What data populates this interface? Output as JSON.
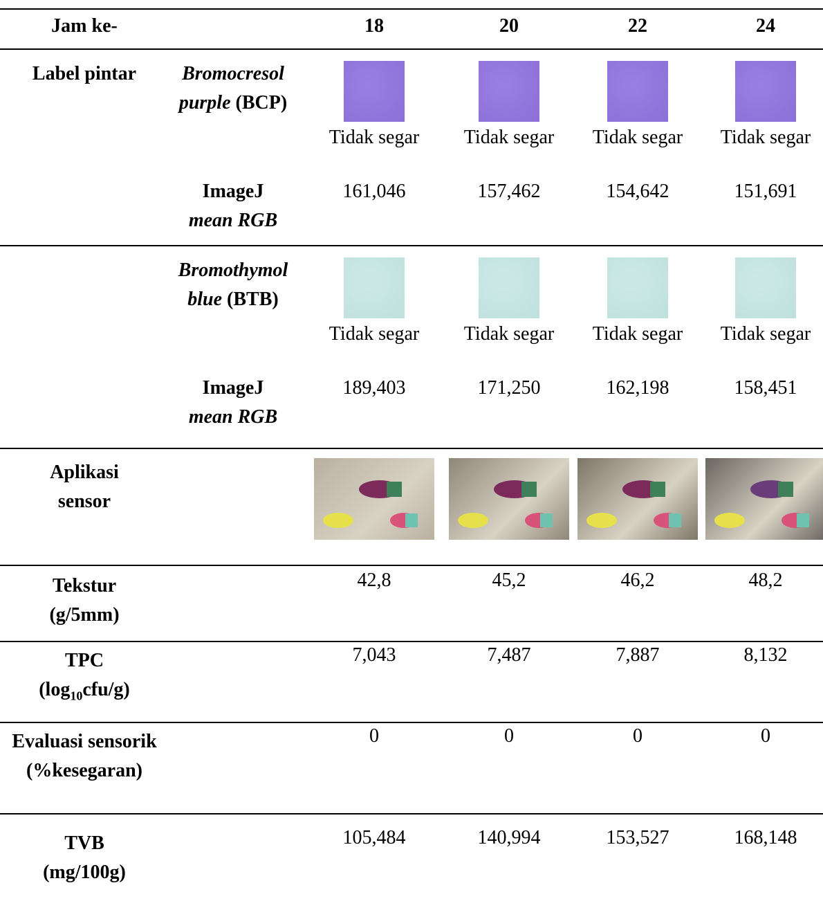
{
  "header": {
    "label": "Jam ke-",
    "hours": [
      "18",
      "20",
      "22",
      "24"
    ]
  },
  "smart_label": {
    "label": "Label pintar",
    "indicators": [
      {
        "name_italic": "Bromocresol purple",
        "name_code": "(BCP)",
        "status": [
          "Tidak segar",
          "Tidak segar",
          "Tidak segar",
          "Tidak segar"
        ],
        "imagej_label": "ImageJ",
        "imagej_label_italic": "mean RGB",
        "imagej_values": [
          "161,046",
          "157,462",
          "154,642",
          "151,691"
        ]
      },
      {
        "name_italic": "Bromothymol blue",
        "name_code": "(BTB)",
        "status": [
          "Tidak segar",
          "Tidak segar",
          "Tidak segar",
          "Tidak segar"
        ],
        "imagej_label": "ImageJ",
        "imagej_label_italic": "mean RGB",
        "imagej_values": [
          "189,403",
          "171,250",
          "162,198",
          "158,451"
        ]
      }
    ]
  },
  "sensor_app": {
    "label": "Aplikasi sensor"
  },
  "rows": [
    {
      "label": "Tekstur",
      "unit_parts": [
        "(g/5mm)"
      ],
      "values": [
        "42,8",
        "45,2",
        "46,2",
        "48,2"
      ]
    },
    {
      "label": "TPC",
      "unit_parts": [
        "(log",
        "10",
        "cfu/g)"
      ],
      "values": [
        "7,043",
        "7,487",
        "7,887",
        "8,132"
      ]
    },
    {
      "label": "Evaluasi sensorik",
      "unit_parts": [
        "(%kesegaran)"
      ],
      "values": [
        "0",
        "0",
        "0",
        "0"
      ]
    },
    {
      "label": "TVB",
      "unit_parts": [
        "(mg/100g)"
      ],
      "values": [
        "105,484",
        "140,994",
        "153,527",
        "168,148"
      ]
    }
  ]
}
